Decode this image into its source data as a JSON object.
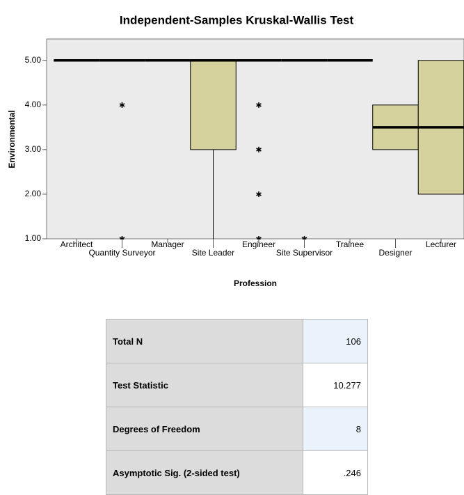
{
  "chart_data": {
    "type": "box",
    "title": "Independent-Samples Kruskal-Wallis Test",
    "x_label": "Profession",
    "y_label": "Environmental",
    "categories": [
      "Architect",
      "Quantity Surveyor",
      "Manager",
      "Site Leader",
      "Engineer",
      "Site Supervisor",
      "Trainee",
      "Designer",
      "Lecturer"
    ],
    "boxes": [
      {
        "min": 5,
        "q1": 5,
        "median": 5,
        "q3": 5,
        "max": 5,
        "outliers": []
      },
      {
        "min": 5,
        "q1": 5,
        "median": 5,
        "q3": 5,
        "max": 5,
        "outliers": [
          4,
          1
        ]
      },
      {
        "min": 5,
        "q1": 5,
        "median": 5,
        "q3": 5,
        "max": 5,
        "outliers": []
      },
      {
        "min": 1,
        "q1": 3,
        "median": 5,
        "q3": 5,
        "max": 5,
        "outliers": []
      },
      {
        "min": 5,
        "q1": 5,
        "median": 5,
        "q3": 5,
        "max": 5,
        "outliers": [
          4,
          3,
          2,
          1
        ]
      },
      {
        "min": 5,
        "q1": 5,
        "median": 5,
        "q3": 5,
        "max": 5,
        "outliers": [
          1
        ]
      },
      {
        "min": 5,
        "q1": 5,
        "median": 5,
        "q3": 5,
        "max": 5,
        "outliers": []
      },
      {
        "min": 3,
        "q1": 3,
        "median": 3.5,
        "q3": 4,
        "max": 4,
        "outliers": []
      },
      {
        "min": 2,
        "q1": 2,
        "median": 3.5,
        "q3": 5,
        "max": 5,
        "outliers": []
      }
    ],
    "color": "#d6d29e",
    "ylim": [
      1,
      5.48
    ],
    "yticks": [
      {
        "value": 1,
        "label": "1.00"
      },
      {
        "value": 2,
        "label": "2.00"
      },
      {
        "value": 3,
        "label": "3.00"
      },
      {
        "value": 4,
        "label": "4.00"
      },
      {
        "value": 5,
        "label": "5.00"
      }
    ]
  },
  "table": {
    "rows": [
      [
        "Total N",
        "106"
      ],
      [
        "Test Statistic",
        "10.277"
      ],
      [
        "Degrees of Freedom",
        "8"
      ],
      [
        "Asymptotic Sig. (2-sided test)",
        ".246"
      ]
    ]
  }
}
